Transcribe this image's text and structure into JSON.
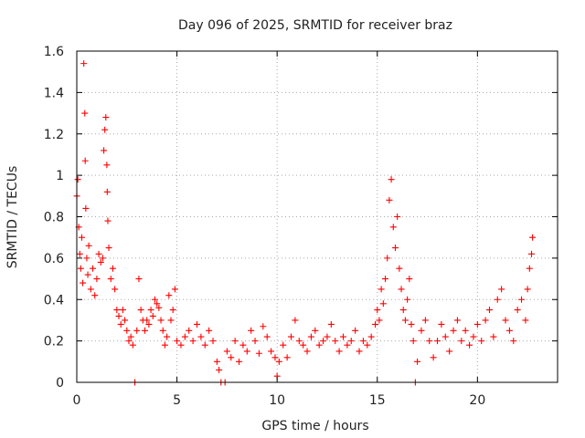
{
  "chart_data": {
    "type": "scatter",
    "title": "Day 096 of 2025, SRMTID for receiver braz",
    "xlabel": "GPS time / hours",
    "ylabel": "SRMTID / TECUs",
    "xlim": [
      0,
      24
    ],
    "ylim": [
      0,
      1.6
    ],
    "xticks": [
      0,
      5,
      10,
      15,
      20
    ],
    "xtick_labels": [
      "0",
      "5",
      "10",
      "15",
      "20"
    ],
    "yticks": [
      0,
      0.2,
      0.4,
      0.6,
      0.8,
      1.0,
      1.2,
      1.4,
      1.6
    ],
    "ytick_labels": [
      "0",
      "0.2",
      "0.4",
      "0.6",
      "0.8",
      "1",
      "1.2",
      "1.4",
      "1.6"
    ],
    "grid": true,
    "marker": "+",
    "color": "#ff0000",
    "series": [
      {
        "name": "SRMTID",
        "points": [
          [
            0.0,
            0.9
          ],
          [
            0.05,
            0.98
          ],
          [
            0.1,
            0.75
          ],
          [
            0.15,
            0.62
          ],
          [
            0.2,
            0.55
          ],
          [
            0.25,
            0.7
          ],
          [
            0.3,
            0.48
          ],
          [
            0.35,
            1.54
          ],
          [
            0.4,
            1.3
          ],
          [
            0.42,
            1.07
          ],
          [
            0.45,
            0.84
          ],
          [
            0.5,
            0.6
          ],
          [
            0.55,
            0.52
          ],
          [
            0.6,
            0.66
          ],
          [
            0.7,
            0.45
          ],
          [
            0.8,
            0.55
          ],
          [
            0.9,
            0.42
          ],
          [
            1.0,
            0.5
          ],
          [
            1.1,
            0.62
          ],
          [
            1.2,
            0.58
          ],
          [
            1.3,
            0.6
          ],
          [
            1.35,
            1.12
          ],
          [
            1.4,
            1.22
          ],
          [
            1.45,
            1.28
          ],
          [
            1.5,
            1.05
          ],
          [
            1.52,
            0.92
          ],
          [
            1.55,
            0.78
          ],
          [
            1.6,
            0.65
          ],
          [
            1.7,
            0.5
          ],
          [
            1.8,
            0.55
          ],
          [
            1.9,
            0.45
          ],
          [
            2.0,
            0.35
          ],
          [
            2.1,
            0.32
          ],
          [
            2.2,
            0.28
          ],
          [
            2.3,
            0.35
          ],
          [
            2.4,
            0.3
          ],
          [
            2.5,
            0.25
          ],
          [
            2.6,
            0.2
          ],
          [
            2.7,
            0.22
          ],
          [
            2.8,
            0.18
          ],
          [
            2.9,
            0.0
          ],
          [
            3.0,
            0.25
          ],
          [
            3.1,
            0.5
          ],
          [
            3.2,
            0.35
          ],
          [
            3.3,
            0.3
          ],
          [
            3.4,
            0.25
          ],
          [
            3.5,
            0.3
          ],
          [
            3.6,
            0.28
          ],
          [
            3.7,
            0.35
          ],
          [
            3.8,
            0.32
          ],
          [
            3.9,
            0.4
          ],
          [
            4.0,
            0.38
          ],
          [
            4.1,
            0.36
          ],
          [
            4.2,
            0.3
          ],
          [
            4.3,
            0.25
          ],
          [
            4.4,
            0.18
          ],
          [
            4.5,
            0.22
          ],
          [
            4.6,
            0.42
          ],
          [
            4.7,
            0.3
          ],
          [
            4.8,
            0.35
          ],
          [
            4.9,
            0.45
          ],
          [
            5.0,
            0.2
          ],
          [
            5.2,
            0.18
          ],
          [
            5.4,
            0.22
          ],
          [
            5.6,
            0.25
          ],
          [
            5.8,
            0.2
          ],
          [
            6.0,
            0.28
          ],
          [
            6.2,
            0.22
          ],
          [
            6.4,
            0.18
          ],
          [
            6.6,
            0.25
          ],
          [
            6.8,
            0.2
          ],
          [
            7.0,
            0.1
          ],
          [
            7.1,
            0.06
          ],
          [
            7.2,
            0.0
          ],
          [
            7.4,
            0.0
          ],
          [
            7.5,
            0.15
          ],
          [
            7.7,
            0.12
          ],
          [
            7.9,
            0.2
          ],
          [
            8.1,
            0.1
          ],
          [
            8.3,
            0.18
          ],
          [
            8.5,
            0.15
          ],
          [
            8.7,
            0.25
          ],
          [
            8.9,
            0.2
          ],
          [
            9.1,
            0.14
          ],
          [
            9.3,
            0.27
          ],
          [
            9.5,
            0.22
          ],
          [
            9.7,
            0.15
          ],
          [
            9.9,
            0.12
          ],
          [
            10.0,
            0.03
          ],
          [
            10.1,
            0.1
          ],
          [
            10.3,
            0.18
          ],
          [
            10.5,
            0.12
          ],
          [
            10.7,
            0.22
          ],
          [
            10.9,
            0.3
          ],
          [
            11.1,
            0.2
          ],
          [
            11.3,
            0.18
          ],
          [
            11.5,
            0.15
          ],
          [
            11.7,
            0.22
          ],
          [
            11.9,
            0.25
          ],
          [
            12.1,
            0.18
          ],
          [
            12.3,
            0.2
          ],
          [
            12.5,
            0.22
          ],
          [
            12.7,
            0.28
          ],
          [
            12.9,
            0.2
          ],
          [
            13.1,
            0.15
          ],
          [
            13.3,
            0.22
          ],
          [
            13.5,
            0.18
          ],
          [
            13.7,
            0.2
          ],
          [
            13.9,
            0.25
          ],
          [
            14.1,
            0.15
          ],
          [
            14.3,
            0.2
          ],
          [
            14.5,
            0.18
          ],
          [
            14.7,
            0.22
          ],
          [
            14.9,
            0.28
          ],
          [
            15.0,
            0.35
          ],
          [
            15.1,
            0.3
          ],
          [
            15.2,
            0.45
          ],
          [
            15.3,
            0.38
          ],
          [
            15.4,
            0.5
          ],
          [
            15.5,
            0.6
          ],
          [
            15.6,
            0.88
          ],
          [
            15.7,
            0.98
          ],
          [
            15.8,
            0.75
          ],
          [
            15.9,
            0.65
          ],
          [
            16.0,
            0.8
          ],
          [
            16.1,
            0.55
          ],
          [
            16.2,
            0.45
          ],
          [
            16.3,
            0.35
          ],
          [
            16.4,
            0.3
          ],
          [
            16.5,
            0.4
          ],
          [
            16.6,
            0.5
          ],
          [
            16.7,
            0.28
          ],
          [
            16.8,
            0.2
          ],
          [
            16.9,
            0.0
          ],
          [
            17.0,
            0.1
          ],
          [
            17.2,
            0.25
          ],
          [
            17.4,
            0.3
          ],
          [
            17.6,
            0.2
          ],
          [
            17.8,
            0.12
          ],
          [
            18.0,
            0.2
          ],
          [
            18.2,
            0.28
          ],
          [
            18.4,
            0.22
          ],
          [
            18.6,
            0.15
          ],
          [
            18.8,
            0.25
          ],
          [
            19.0,
            0.3
          ],
          [
            19.2,
            0.2
          ],
          [
            19.4,
            0.25
          ],
          [
            19.6,
            0.18
          ],
          [
            19.8,
            0.22
          ],
          [
            20.0,
            0.28
          ],
          [
            20.2,
            0.2
          ],
          [
            20.4,
            0.3
          ],
          [
            20.6,
            0.35
          ],
          [
            20.8,
            0.22
          ],
          [
            21.0,
            0.4
          ],
          [
            21.2,
            0.45
          ],
          [
            21.4,
            0.3
          ],
          [
            21.6,
            0.25
          ],
          [
            21.8,
            0.2
          ],
          [
            22.0,
            0.35
          ],
          [
            22.2,
            0.4
          ],
          [
            22.4,
            0.3
          ],
          [
            22.5,
            0.45
          ],
          [
            22.6,
            0.55
          ],
          [
            22.7,
            0.62
          ],
          [
            22.75,
            0.7
          ]
        ]
      }
    ]
  }
}
